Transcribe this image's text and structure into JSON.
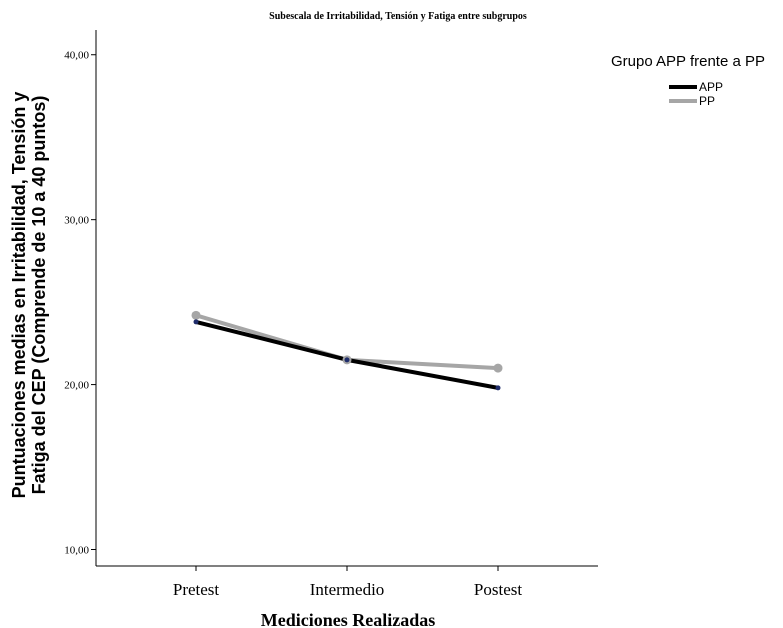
{
  "chart_data": {
    "type": "line",
    "title": "Subescala de Irritabilidad, Tensión y Fatiga entre subgrupos",
    "xlabel": "Mediciones Realizadas",
    "ylabel_lines": [
      "Puntuaciones medias en Irritabilidad, Tensión y",
      "Fatiga del CEP (Comprende de 10 a 40 puntos)"
    ],
    "categories": [
      "Pretest",
      "Intermedio",
      "Postest"
    ],
    "y_ticks": [
      10,
      20,
      30,
      40
    ],
    "y_tick_labels": [
      "10,00",
      "20,00",
      "30,00",
      "40,00"
    ],
    "ylim": [
      9,
      41.5
    ],
    "legend": {
      "title": "Grupo APP frente a PP",
      "placement": "top-right outside"
    },
    "series": [
      {
        "name": "APP",
        "color": "#000000",
        "marker_color": "#1f2d6b",
        "values": [
          23.8,
          21.5,
          19.8
        ]
      },
      {
        "name": "PP",
        "color": "#a6a6a6",
        "marker_color": "#a6a6a6",
        "values": [
          24.2,
          21.5,
          21.0
        ]
      }
    ]
  }
}
